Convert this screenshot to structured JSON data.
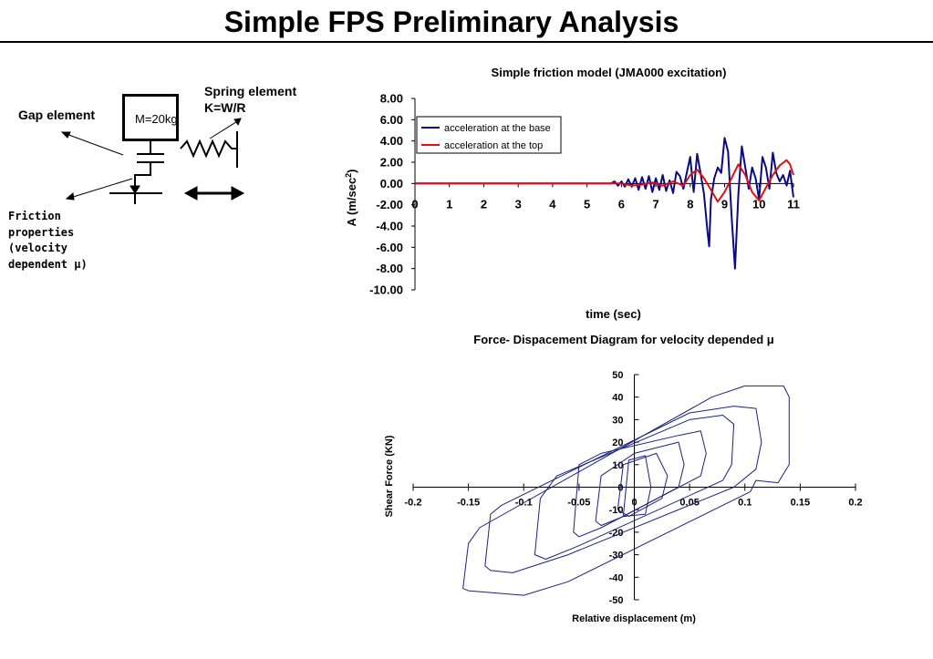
{
  "slide": {
    "title": "Simple FPS Preliminary Analysis"
  },
  "diagram": {
    "gap_label": "Gap element",
    "spring_label": "Spring element",
    "spring_formula": "K=W/R",
    "mass_label": "M=20kg",
    "friction_lines": [
      "Friction",
      "properties",
      "(velocity",
      "dependent μ)"
    ]
  },
  "chart_data": [
    {
      "type": "line",
      "title": "Simple friction model (JMA000 excitation)",
      "xlabel": "time (sec)",
      "ylabel": "A (m/sec",
      "ylabel_sup": "2",
      "ylabel_close": ")",
      "xlim": [
        0,
        11
      ],
      "ylim": [
        -10,
        8
      ],
      "x_ticks": [
        "0",
        "1",
        "2",
        "3",
        "4",
        "5",
        "6",
        "7",
        "8",
        "9",
        "10",
        "11"
      ],
      "y_ticks": [
        "8.00",
        "6.00",
        "4.00",
        "2.00",
        "0.00",
        "-2.00",
        "-4.00",
        "-6.00",
        "-8.00",
        "-10.00"
      ],
      "legend_position": "top-left",
      "series": [
        {
          "name": "acceleration at the base",
          "color": "#0a0a82",
          "x": [
            0,
            5.7,
            5.8,
            5.9,
            6.0,
            6.1,
            6.2,
            6.3,
            6.4,
            6.5,
            6.6,
            6.7,
            6.8,
            6.9,
            7.0,
            7.1,
            7.2,
            7.3,
            7.4,
            7.5,
            7.6,
            7.7,
            7.8,
            7.9,
            8.0,
            8.05,
            8.1,
            8.2,
            8.3,
            8.4,
            8.5,
            8.55,
            8.6,
            8.7,
            8.8,
            8.9,
            9.0,
            9.1,
            9.2,
            9.3,
            9.4,
            9.5,
            9.6,
            9.7,
            9.8,
            9.9,
            10.0,
            10.1,
            10.2,
            10.3,
            10.4,
            10.5,
            10.6,
            10.7,
            10.8,
            10.9,
            11.0
          ],
          "y": [
            0,
            0,
            0.2,
            -0.2,
            0.2,
            -0.3,
            0.4,
            -0.3,
            0.5,
            -0.6,
            0.6,
            -0.5,
            0.7,
            -0.8,
            0.5,
            -0.6,
            0.8,
            -0.7,
            0.3,
            -0.9,
            1.1,
            0.7,
            -0.5,
            1.0,
            2.5,
            0.8,
            -0.8,
            2.8,
            1.0,
            -1.0,
            -4.5,
            -5.9,
            -1.5,
            0.5,
            1.5,
            1.0,
            4.3,
            3.0,
            -3.0,
            -8.0,
            -1.0,
            3.5,
            1.5,
            -0.5,
            1.5,
            0.5,
            -1.5,
            2.5,
            1.5,
            -0.5,
            2.9,
            1.0,
            0.2,
            0.8,
            -0.2,
            1.2,
            -1.3
          ]
        },
        {
          "name": "acceleration at the top",
          "color": "#e01010",
          "x": [
            0,
            6.0,
            6.3,
            6.6,
            6.9,
            7.2,
            7.5,
            7.8,
            8.0,
            8.2,
            8.4,
            8.6,
            8.8,
            9.0,
            9.2,
            9.4,
            9.6,
            9.8,
            10.0,
            10.2,
            10.4,
            10.6,
            10.8,
            10.9,
            11.0
          ],
          "y": [
            0,
            0,
            -0.2,
            -0.1,
            0.1,
            -0.2,
            0.2,
            -0.2,
            0.8,
            1.3,
            0.5,
            -0.6,
            -1.7,
            -0.8,
            0.5,
            1.8,
            0.8,
            -0.8,
            -1.6,
            -0.4,
            0.8,
            1.7,
            2.2,
            1.8,
            0.8
          ]
        }
      ]
    },
    {
      "type": "line",
      "title": "Force- Dispacement Diagram for velocity depended μ",
      "xlabel": "Relative displacement (m)",
      "ylabel": "Shear Force (KN)",
      "xlim": [
        -0.2,
        0.2
      ],
      "ylim": [
        -50,
        50
      ],
      "x_ticks": [
        "-0.2",
        "-0.15",
        "-0.1",
        "-0.05",
        "0",
        "0.05",
        "0.1",
        "0.15",
        "0.2"
      ],
      "y_ticks": [
        "50",
        "40",
        "30",
        "20",
        "10",
        "0",
        "-10",
        "-20",
        "-30",
        "-40",
        "-50"
      ],
      "series": [
        {
          "color": "#1a237e",
          "loops": [
            [
              [
                -0.155,
                -45
              ],
              [
                -0.15,
                -25
              ],
              [
                -0.14,
                -18
              ],
              [
                0.07,
                40
              ],
              [
                0.1,
                45
              ],
              [
                0.135,
                45
              ],
              [
                0.14,
                40
              ],
              [
                0.14,
                10
              ],
              [
                0.13,
                2
              ],
              [
                0.11,
                3
              ],
              [
                0.105,
                -2
              ],
              [
                -0.06,
                -42
              ],
              [
                -0.1,
                -48
              ],
              [
                -0.15,
                -46
              ]
            ],
            [
              [
                -0.135,
                -35
              ],
              [
                -0.13,
                -12
              ],
              [
                -0.12,
                -8
              ],
              [
                0.05,
                33
              ],
              [
                0.09,
                36
              ],
              [
                0.11,
                35
              ],
              [
                0.115,
                20
              ],
              [
                0.11,
                8
              ],
              [
                0.09,
                0
              ],
              [
                -0.06,
                -30
              ],
              [
                -0.11,
                -38
              ],
              [
                -0.13,
                -37
              ]
            ],
            [
              [
                -0.09,
                -30
              ],
              [
                -0.085,
                -5
              ],
              [
                -0.07,
                5
              ],
              [
                0.05,
                30
              ],
              [
                0.08,
                32
              ],
              [
                0.09,
                28
              ],
              [
                0.088,
                10
              ],
              [
                0.08,
                3
              ],
              [
                -0.05,
                -26
              ],
              [
                -0.08,
                -32
              ]
            ],
            [
              [
                -0.055,
                -20
              ],
              [
                -0.05,
                10
              ],
              [
                -0.03,
                15
              ],
              [
                0.04,
                23
              ],
              [
                0.06,
                25
              ],
              [
                0.065,
                15
              ],
              [
                0.06,
                5
              ],
              [
                -0.03,
                -18
              ],
              [
                -0.05,
                -22
              ]
            ],
            [
              [
                -0.035,
                -15
              ],
              [
                -0.03,
                5
              ],
              [
                0,
                15
              ],
              [
                0.04,
                20
              ],
              [
                0.045,
                10
              ],
              [
                0.04,
                0
              ],
              [
                -0.01,
                -13
              ],
              [
                -0.03,
                -17
              ]
            ],
            [
              [
                -0.015,
                -10
              ],
              [
                -0.01,
                10
              ],
              [
                0.02,
                15
              ],
              [
                0.03,
                5
              ],
              [
                0.025,
                -5
              ],
              [
                -0.005,
                -13
              ]
            ],
            [
              [
                -0.01,
                -13
              ],
              [
                -0.005,
                12
              ],
              [
                0.01,
                14
              ],
              [
                0.015,
                0
              ],
              [
                0.01,
                -12
              ]
            ]
          ]
        }
      ]
    }
  ]
}
